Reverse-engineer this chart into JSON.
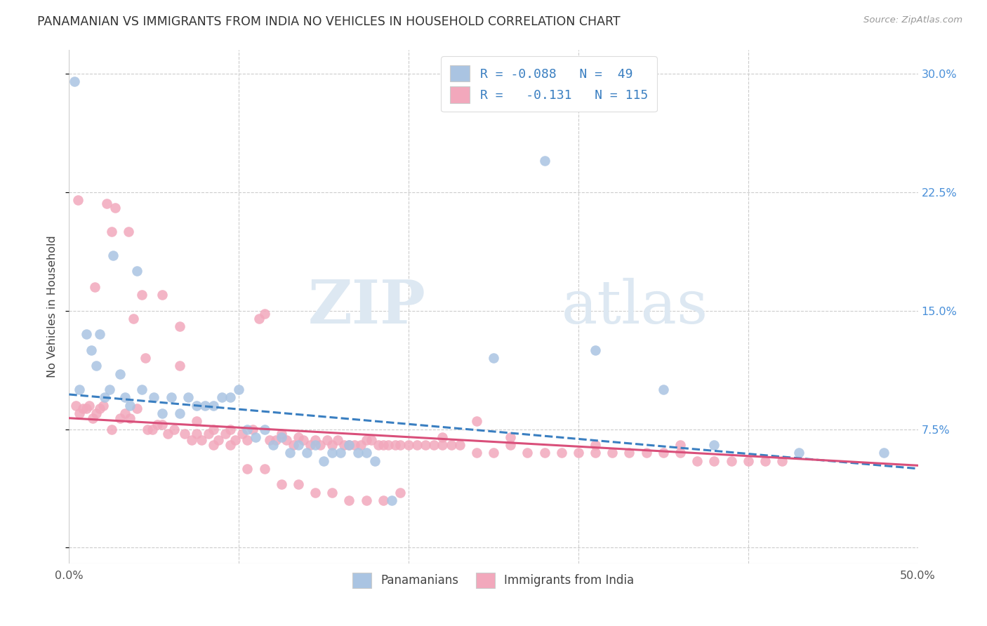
{
  "title": "PANAMANIAN VS IMMIGRANTS FROM INDIA NO VEHICLES IN HOUSEHOLD CORRELATION CHART",
  "source": "Source: ZipAtlas.com",
  "ylabel": "No Vehicles in Household",
  "xlim": [
    0.0,
    0.5
  ],
  "ylim": [
    -0.01,
    0.315
  ],
  "blue_color": "#aac4e2",
  "pink_color": "#f2a8bc",
  "blue_line_color": "#3a7fc1",
  "pink_line_color": "#d94f7a",
  "blue_R": -0.088,
  "blue_N": 49,
  "pink_R": -0.131,
  "pink_N": 115,
  "watermark_zip": "ZIP",
  "watermark_atlas": "atlas",
  "legend_label_blue": "Panamanians",
  "legend_label_pink": "Immigrants from India",
  "blue_scatter_x": [
    0.003,
    0.006,
    0.01,
    0.013,
    0.016,
    0.018,
    0.021,
    0.024,
    0.026,
    0.03,
    0.033,
    0.036,
    0.04,
    0.043,
    0.05,
    0.055,
    0.06,
    0.065,
    0.07,
    0.075,
    0.08,
    0.085,
    0.09,
    0.095,
    0.1,
    0.105,
    0.11,
    0.115,
    0.12,
    0.125,
    0.13,
    0.135,
    0.14,
    0.145,
    0.15,
    0.155,
    0.16,
    0.165,
    0.17,
    0.175,
    0.18,
    0.19,
    0.25,
    0.28,
    0.31,
    0.35,
    0.38,
    0.43,
    0.48
  ],
  "blue_scatter_y": [
    0.295,
    0.1,
    0.135,
    0.125,
    0.115,
    0.135,
    0.095,
    0.1,
    0.185,
    0.11,
    0.095,
    0.09,
    0.175,
    0.1,
    0.095,
    0.085,
    0.095,
    0.085,
    0.095,
    0.09,
    0.09,
    0.09,
    0.095,
    0.095,
    0.1,
    0.075,
    0.07,
    0.075,
    0.065,
    0.07,
    0.06,
    0.065,
    0.06,
    0.065,
    0.055,
    0.06,
    0.06,
    0.065,
    0.06,
    0.06,
    0.055,
    0.03,
    0.12,
    0.245,
    0.125,
    0.1,
    0.065,
    0.06,
    0.06
  ],
  "pink_scatter_x": [
    0.004,
    0.006,
    0.008,
    0.01,
    0.012,
    0.014,
    0.016,
    0.018,
    0.02,
    0.022,
    0.025,
    0.027,
    0.03,
    0.033,
    0.036,
    0.038,
    0.04,
    0.043,
    0.046,
    0.049,
    0.052,
    0.055,
    0.058,
    0.062,
    0.065,
    0.068,
    0.072,
    0.075,
    0.078,
    0.082,
    0.085,
    0.088,
    0.092,
    0.095,
    0.098,
    0.102,
    0.105,
    0.108,
    0.112,
    0.115,
    0.118,
    0.122,
    0.125,
    0.128,
    0.132,
    0.135,
    0.138,
    0.142,
    0.145,
    0.148,
    0.152,
    0.155,
    0.158,
    0.162,
    0.165,
    0.168,
    0.172,
    0.175,
    0.178,
    0.182,
    0.185,
    0.188,
    0.192,
    0.195,
    0.2,
    0.205,
    0.21,
    0.215,
    0.22,
    0.225,
    0.23,
    0.24,
    0.25,
    0.26,
    0.27,
    0.28,
    0.29,
    0.3,
    0.31,
    0.32,
    0.33,
    0.34,
    0.35,
    0.36,
    0.37,
    0.38,
    0.39,
    0.4,
    0.41,
    0.42,
    0.005,
    0.015,
    0.025,
    0.035,
    0.045,
    0.055,
    0.065,
    0.075,
    0.085,
    0.095,
    0.105,
    0.115,
    0.125,
    0.135,
    0.145,
    0.155,
    0.165,
    0.175,
    0.185,
    0.195,
    0.22,
    0.24,
    0.26,
    0.31,
    0.36
  ],
  "pink_scatter_y": [
    0.09,
    0.085,
    0.088,
    0.088,
    0.09,
    0.082,
    0.085,
    0.088,
    0.09,
    0.218,
    0.075,
    0.215,
    0.082,
    0.085,
    0.082,
    0.145,
    0.088,
    0.16,
    0.075,
    0.075,
    0.078,
    0.078,
    0.072,
    0.075,
    0.14,
    0.072,
    0.068,
    0.072,
    0.068,
    0.072,
    0.075,
    0.068,
    0.072,
    0.075,
    0.068,
    0.072,
    0.068,
    0.075,
    0.145,
    0.148,
    0.068,
    0.068,
    0.072,
    0.068,
    0.065,
    0.07,
    0.068,
    0.065,
    0.068,
    0.065,
    0.068,
    0.065,
    0.068,
    0.065,
    0.065,
    0.065,
    0.065,
    0.068,
    0.068,
    0.065,
    0.065,
    0.065,
    0.065,
    0.065,
    0.065,
    0.065,
    0.065,
    0.065,
    0.065,
    0.065,
    0.065,
    0.06,
    0.06,
    0.065,
    0.06,
    0.06,
    0.06,
    0.06,
    0.06,
    0.06,
    0.06,
    0.06,
    0.06,
    0.06,
    0.055,
    0.055,
    0.055,
    0.055,
    0.055,
    0.055,
    0.22,
    0.165,
    0.2,
    0.2,
    0.12,
    0.16,
    0.115,
    0.08,
    0.065,
    0.065,
    0.05,
    0.05,
    0.04,
    0.04,
    0.035,
    0.035,
    0.03,
    0.03,
    0.03,
    0.035,
    0.07,
    0.08,
    0.07,
    0.065,
    0.065
  ]
}
